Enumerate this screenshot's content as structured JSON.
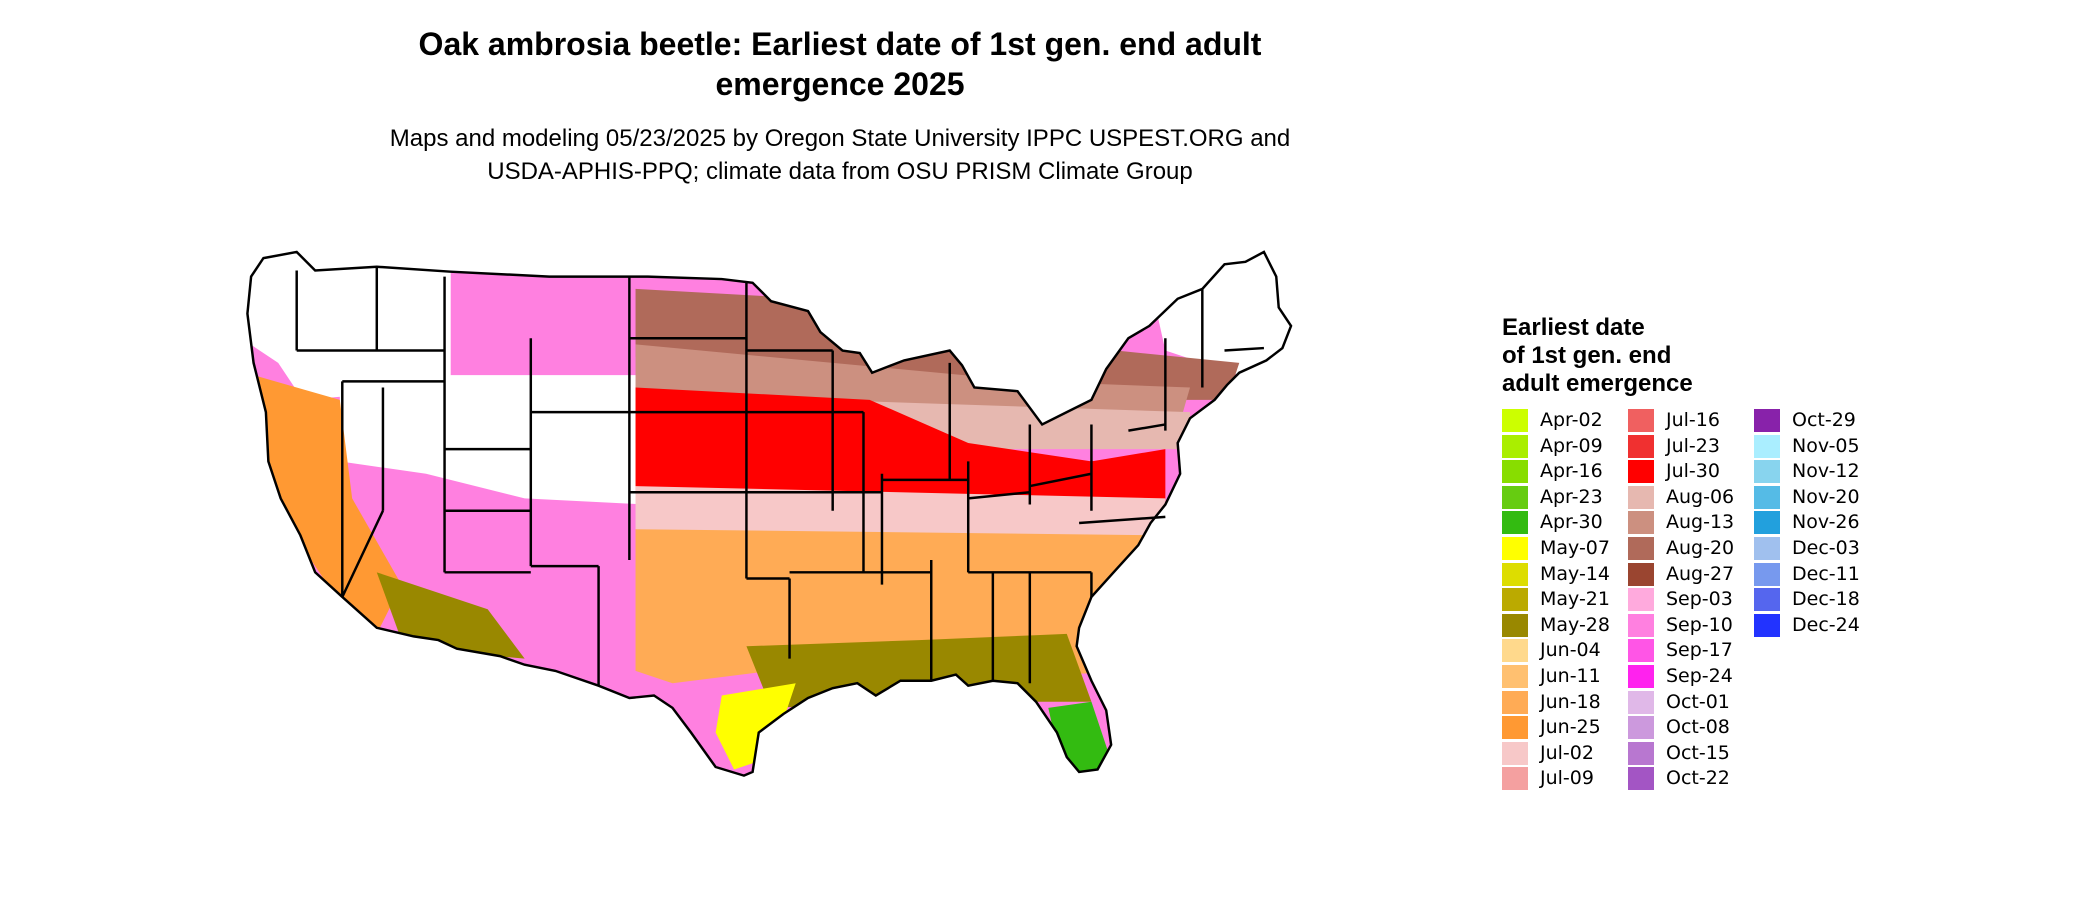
{
  "header": {
    "title_line1": "Oak ambrosia beetle: Earliest date of 1st gen. end adult",
    "title_line2": "emergence 2025",
    "subtitle_line1": "Maps and modeling 05/23/2025 by Oregon State University IPPC USPEST.ORG and",
    "subtitle_line2": "USDA-APHIS-PPQ; climate data from OSU PRISM Climate Group"
  },
  "legend": {
    "title_line1": "Earliest date",
    "title_line2": "of 1st gen. end",
    "title_line3": "adult emergence",
    "columns": [
      [
        {
          "label": "Apr-02",
          "color": "#ccff00"
        },
        {
          "label": "Apr-09",
          "color": "#aaee00"
        },
        {
          "label": "Apr-16",
          "color": "#88dd00"
        },
        {
          "label": "Apr-23",
          "color": "#66cc11"
        },
        {
          "label": "Apr-30",
          "color": "#33bb11"
        },
        {
          "label": "May-07",
          "color": "#ffff00"
        },
        {
          "label": "May-14",
          "color": "#dddd00"
        },
        {
          "label": "May-21",
          "color": "#bbaa00"
        },
        {
          "label": "May-28",
          "color": "#998800"
        },
        {
          "label": "Jun-04",
          "color": "#ffd98c"
        },
        {
          "label": "Jun-11",
          "color": "#ffc070"
        },
        {
          "label": "Jun-18",
          "color": "#ffab55"
        },
        {
          "label": "Jun-25",
          "color": "#ff9933"
        },
        {
          "label": "Jul-02",
          "color": "#f7c8c8"
        },
        {
          "label": "Jul-09",
          "color": "#f4a0a0"
        }
      ],
      [
        {
          "label": "Jul-16",
          "color": "#f06060"
        },
        {
          "label": "Jul-23",
          "color": "#f03030"
        },
        {
          "label": "Jul-30",
          "color": "#ff0000"
        },
        {
          "label": "Aug-06",
          "color": "#e6b8b0"
        },
        {
          "label": "Aug-13",
          "color": "#cc9080"
        },
        {
          "label": "Aug-20",
          "color": "#b06a5a"
        },
        {
          "label": "Aug-27",
          "color": "#9a4530"
        },
        {
          "label": "Sep-03",
          "color": "#ffaadd"
        },
        {
          "label": "Sep-10",
          "color": "#ff80e0"
        },
        {
          "label": "Sep-17",
          "color": "#ff55e6"
        },
        {
          "label": "Sep-24",
          "color": "#ff22ee"
        },
        {
          "label": "Oct-01",
          "color": "#e0b8e8"
        },
        {
          "label": "Oct-08",
          "color": "#cc99dd"
        },
        {
          "label": "Oct-15",
          "color": "#b877d0"
        },
        {
          "label": "Oct-22",
          "color": "#a355c4"
        }
      ],
      [
        {
          "label": "Oct-29",
          "color": "#8822aa"
        },
        {
          "label": "Nov-05",
          "color": "#aaeeff"
        },
        {
          "label": "Nov-12",
          "color": "#88d4ee"
        },
        {
          "label": "Nov-20",
          "color": "#55bbe6"
        },
        {
          "label": "Nov-26",
          "color": "#22a0dd"
        },
        {
          "label": "Dec-03",
          "color": "#a0c0ee"
        },
        {
          "label": "Dec-11",
          "color": "#7799ee"
        },
        {
          "label": "Dec-18",
          "color": "#5566ee"
        },
        {
          "label": "Dec-24",
          "color": "#2233ff"
        }
      ]
    ]
  },
  "map": {
    "regions": [
      {
        "name": "pacific-northwest-high",
        "color": "#ffffff"
      },
      {
        "name": "northern-rockies",
        "color": "#ffffff"
      },
      {
        "name": "northern-plains-fringe",
        "color": "#ff80e0"
      },
      {
        "name": "great-lakes-north",
        "color": "#ffffff"
      },
      {
        "name": "northeast",
        "color": "#ffffff"
      },
      {
        "name": "northern-tier",
        "color": "#b06a5a"
      },
      {
        "name": "upper-midwest",
        "color": "#cc9080"
      },
      {
        "name": "mid-latitude",
        "color": "#e6b8b0"
      },
      {
        "name": "central-red-band",
        "color": "#ff0000"
      },
      {
        "name": "southern-plains-pink",
        "color": "#f7c8c8"
      },
      {
        "name": "southeast-orange",
        "color": "#ffab55"
      },
      {
        "name": "gulf-coast",
        "color": "#998800"
      },
      {
        "name": "south-texas",
        "color": "#ffff00"
      },
      {
        "name": "florida-south",
        "color": "#33bb11"
      },
      {
        "name": "california-valley",
        "color": "#ff9933"
      },
      {
        "name": "desert-southwest",
        "color": "#998800"
      }
    ]
  }
}
